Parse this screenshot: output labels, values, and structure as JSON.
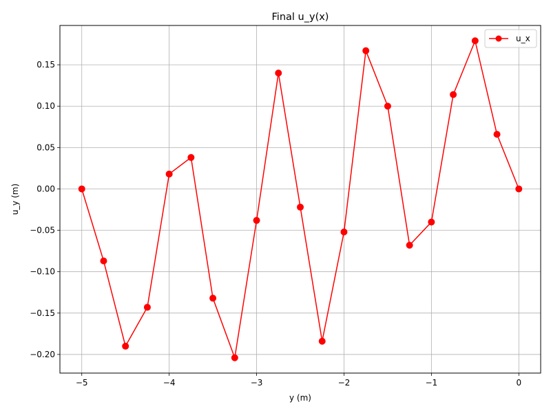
{
  "chart_data": {
    "type": "line",
    "title": "Final u_y(x)",
    "xlabel": "y (m)",
    "ylabel": "u_y (m)",
    "xlim": [
      -5.25,
      0.25
    ],
    "ylim": [
      -0.2225,
      0.1975
    ],
    "xticks": [
      -5,
      -4,
      -3,
      -2,
      -1,
      0
    ],
    "xtick_labels": [
      "−5",
      "−4",
      "−3",
      "−2",
      "−1",
      "0"
    ],
    "yticks": [
      -0.2,
      -0.15,
      -0.1,
      -0.05,
      0.0,
      0.05,
      0.1,
      0.15
    ],
    "ytick_labels": [
      "−0.20",
      "−0.15",
      "−0.10",
      "−0.05",
      "0.00",
      "0.05",
      "0.10",
      "0.15"
    ],
    "grid": true,
    "legend_position": "top-right",
    "series": [
      {
        "name": "u_x",
        "color": "#ff0000",
        "marker": "circle",
        "x": [
          -5.0,
          -4.75,
          -4.5,
          -4.25,
          -4.0,
          -3.75,
          -3.5,
          -3.25,
          -3.0,
          -2.75,
          -2.5,
          -2.25,
          -2.0,
          -1.75,
          -1.5,
          -1.25,
          -1.0,
          -0.75,
          -0.5,
          -0.25,
          0.0
        ],
        "y": [
          0.0,
          -0.087,
          -0.19,
          -0.143,
          0.018,
          0.038,
          -0.132,
          -0.204,
          -0.038,
          0.14,
          -0.022,
          -0.184,
          -0.052,
          0.167,
          0.1,
          -0.068,
          -0.04,
          0.114,
          0.179,
          0.066,
          0.0
        ]
      }
    ]
  }
}
